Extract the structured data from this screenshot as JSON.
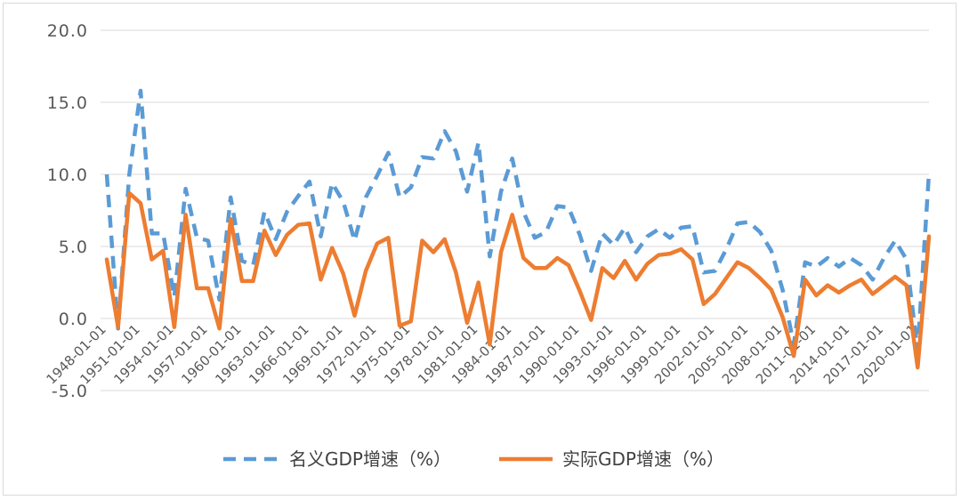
{
  "chart_data": {
    "type": "line",
    "title": "",
    "xlabel": "",
    "ylabel": "",
    "ylim": [
      -5,
      20
    ],
    "y_ticks": [
      "20.0",
      "15.0",
      "10.0",
      "5.0",
      "0.0",
      "-5.0"
    ],
    "y_tick_values": [
      20,
      15,
      10,
      5,
      0,
      -5
    ],
    "grid": "horizontal",
    "legend_position": "bottom",
    "x": [
      "1948-01-01",
      "1949-01-01",
      "1950-01-01",
      "1951-01-01",
      "1952-01-01",
      "1953-01-01",
      "1954-01-01",
      "1955-01-01",
      "1956-01-01",
      "1957-01-01",
      "1958-01-01",
      "1959-01-01",
      "1960-01-01",
      "1961-01-01",
      "1962-01-01",
      "1963-01-01",
      "1964-01-01",
      "1965-01-01",
      "1966-01-01",
      "1967-01-01",
      "1968-01-01",
      "1969-01-01",
      "1970-01-01",
      "1971-01-01",
      "1972-01-01",
      "1973-01-01",
      "1974-01-01",
      "1975-01-01",
      "1976-01-01",
      "1977-01-01",
      "1978-01-01",
      "1979-01-01",
      "1980-01-01",
      "1981-01-01",
      "1982-01-01",
      "1983-01-01",
      "1984-01-01",
      "1985-01-01",
      "1986-01-01",
      "1987-01-01",
      "1988-01-01",
      "1989-01-01",
      "1990-01-01",
      "1991-01-01",
      "1992-01-01",
      "1993-01-01",
      "1994-01-01",
      "1995-01-01",
      "1996-01-01",
      "1997-01-01",
      "1998-01-01",
      "1999-01-01",
      "2000-01-01",
      "2001-01-01",
      "2002-01-01",
      "2003-01-01",
      "2004-01-01",
      "2005-01-01",
      "2006-01-01",
      "2007-01-01",
      "2008-01-01",
      "2009-01-01",
      "2010-01-01",
      "2011-01-01",
      "2012-01-01",
      "2013-01-01",
      "2014-01-01",
      "2015-01-01",
      "2016-01-01",
      "2017-01-01",
      "2018-01-01",
      "2019-01-01",
      "2020-01-01",
      "2021-01-01"
    ],
    "x_tick_labels": [
      "1948-01-01",
      "1951-01-01",
      "1954-01-01",
      "1957-01-01",
      "1960-01-01",
      "1963-01-01",
      "1966-01-01",
      "1969-01-01",
      "1972-01-01",
      "1975-01-01",
      "1978-01-01",
      "1981-01-01",
      "1984-01-01",
      "1987-01-01",
      "1990-01-01",
      "1993-01-01",
      "1996-01-01",
      "1999-01-01",
      "2002-01-01",
      "2005-01-01",
      "2008-01-01",
      "2011-01-01",
      "2014-01-01",
      "2017-01-01",
      "2020-01-01"
    ],
    "series": [
      {
        "name": "名义GDP增速（%）",
        "color": "#5b9bd5",
        "dash": "dashed",
        "values": [
          10.0,
          -0.7,
          10.0,
          15.8,
          5.9,
          5.9,
          1.5,
          9.0,
          5.6,
          5.4,
          1.3,
          8.4,
          4.0,
          3.7,
          7.4,
          5.5,
          7.4,
          8.5,
          9.5,
          5.7,
          9.4,
          8.1,
          5.4,
          8.4,
          9.9,
          11.5,
          8.4,
          9.1,
          11.2,
          11.1,
          13.0,
          11.6,
          8.8,
          12.2,
          4.3,
          8.8,
          11.1,
          7.4,
          5.6,
          6.0,
          7.8,
          7.7,
          5.8,
          3.3,
          5.9,
          5.1,
          6.3,
          4.6,
          5.7,
          6.2,
          5.6,
          6.3,
          6.4,
          3.2,
          3.3,
          4.8,
          6.6,
          6.7,
          6.0,
          4.7,
          2.0,
          -1.8,
          3.9,
          3.6,
          4.2,
          3.6,
          4.2,
          3.7,
          2.7,
          4.2,
          5.4,
          4.1,
          -2.2,
          10.1
        ]
      },
      {
        "name": "实际GDP增速（%）",
        "color": "#ed7d31",
        "dash": "solid",
        "values": [
          4.1,
          -0.6,
          8.7,
          8.0,
          4.1,
          4.7,
          -0.6,
          7.2,
          2.1,
          2.1,
          -0.7,
          6.9,
          2.6,
          2.6,
          6.1,
          4.4,
          5.8,
          6.5,
          6.6,
          2.7,
          4.9,
          3.1,
          0.2,
          3.3,
          5.2,
          5.6,
          -0.5,
          -0.2,
          5.4,
          4.6,
          5.5,
          3.2,
          -0.3,
          2.5,
          -1.8,
          4.6,
          7.2,
          4.2,
          3.5,
          3.5,
          4.2,
          3.7,
          1.9,
          -0.1,
          3.5,
          2.8,
          4.0,
          2.7,
          3.8,
          4.4,
          4.5,
          4.8,
          4.1,
          1.0,
          1.7,
          2.8,
          3.9,
          3.5,
          2.8,
          2.0,
          0.1,
          -2.6,
          2.7,
          1.6,
          2.3,
          1.8,
          2.3,
          2.7,
          1.7,
          2.3,
          2.9,
          2.3,
          -3.4,
          5.7
        ]
      }
    ]
  }
}
